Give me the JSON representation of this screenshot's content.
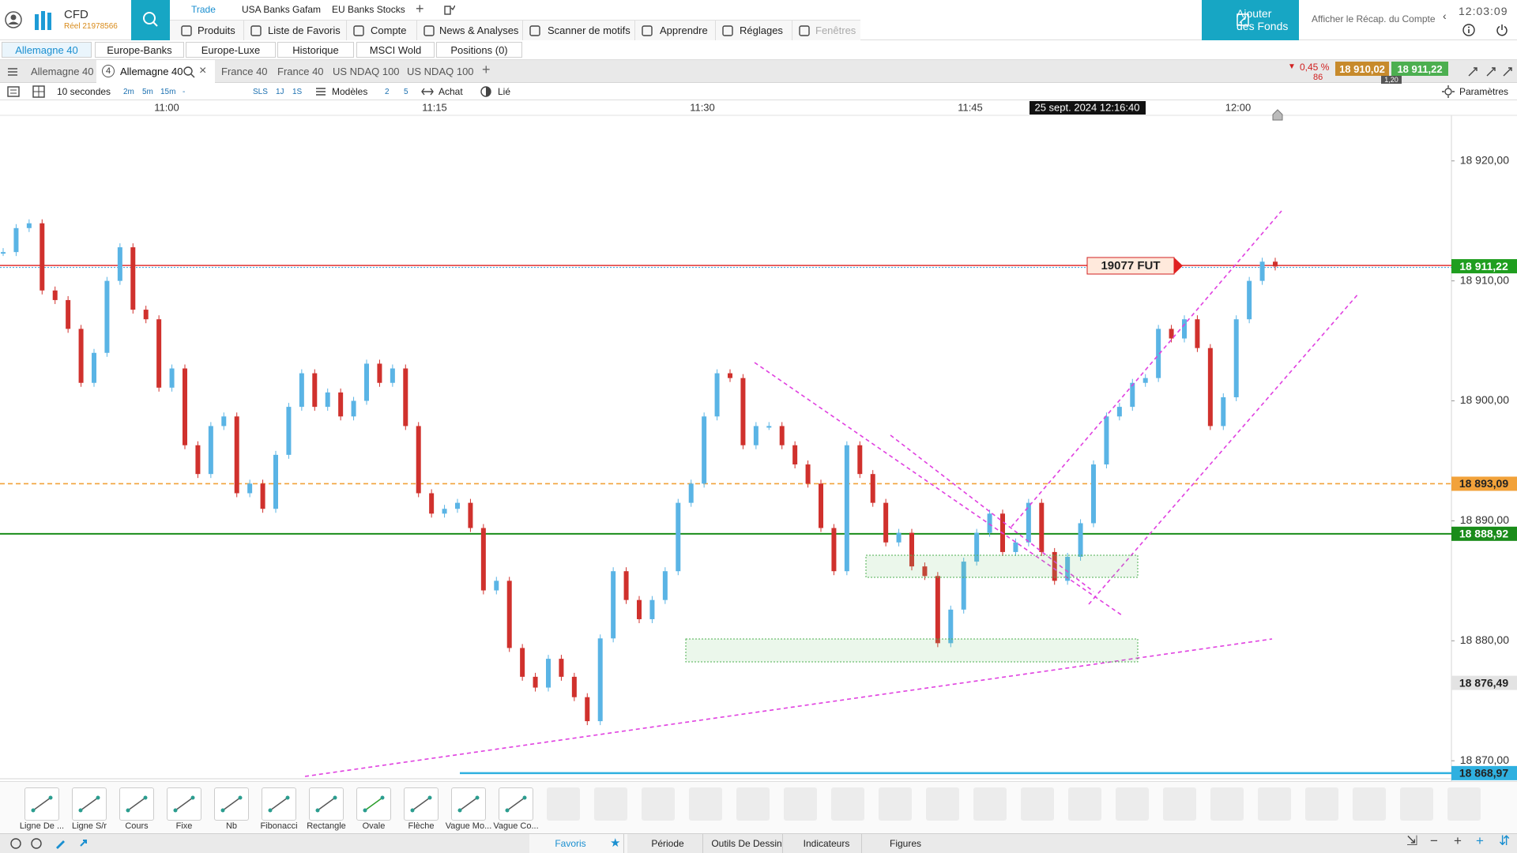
{
  "header": {
    "account_type": "CFD",
    "account_id": "Réel 21978566",
    "top_tabs": [
      "Trade",
      "USA Banks Gafam",
      "EU Banks Stocks"
    ],
    "menu": [
      "Produits",
      "Liste de Favoris",
      "Compte",
      "News & Analyses",
      "Scanner de motifs",
      "Apprendre",
      "Réglages",
      "Fenêtres"
    ],
    "add_funds": [
      "Ajouter",
      "des Fonds"
    ],
    "account_summary": "Afficher le Récap. du Compte",
    "clock": "12:03:09"
  },
  "watchlists": [
    "Allemagne 40",
    "Europe-Banks",
    "Europe-Luxe",
    "Historique",
    "MSCI Wold",
    "Positions (0)"
  ],
  "chart_tabs": [
    "Allemagne 40",
    "Allemagne 40",
    "France 40",
    "France 40",
    "US NDAQ 100",
    "US NDAQ 100"
  ],
  "active_tab_badge": "4",
  "quote": {
    "change": "0,45 %",
    "change_points": "86",
    "bid": "18 910,02",
    "ask": "18 911,22",
    "spread": "1,20"
  },
  "toolbar": {
    "interval": "10 secondes",
    "intervals": [
      "2m",
      "5m",
      "15m",
      "-"
    ],
    "ranges": [
      "SLS",
      "1J",
      "1S"
    ],
    "templates": "Modèles",
    "counts": [
      "2",
      "5"
    ],
    "buy": "Achat",
    "linked": "Lié",
    "settings": "Paramètres"
  },
  "chart": {
    "type": "candlestick",
    "time_ticks": [
      "11:00",
      "11:15",
      "11:30",
      "11:45",
      "12:00"
    ],
    "cursor_time": "25 sept. 2024 12:16:40",
    "ylim": [
      18868.5,
      18923.8
    ],
    "yticks": [
      {
        "value": 18870,
        "label": "18 870,00"
      },
      {
        "value": 18880,
        "label": "18 880,00"
      },
      {
        "value": 18890,
        "label": "18 890,00"
      },
      {
        "value": 18900,
        "label": "18 900,00"
      },
      {
        "value": 18910,
        "label": "18 910,00"
      },
      {
        "value": 18920,
        "label": "18 920,00"
      }
    ],
    "colors": {
      "up": "#5ab4e5",
      "down": "#d0312d"
    },
    "closes": [
      18912.4,
      18914.4,
      18914.8,
      18909.2,
      18908.4,
      18906,
      18901.5,
      18904,
      18910,
      18912.8,
      18907.6,
      18906.8,
      18901.1,
      18902.7,
      18896.3,
      18893.9,
      18897.9,
      18898.7,
      18892.3,
      18893.1,
      18891,
      18895.5,
      18899.5,
      18902.3,
      18899.5,
      18900.7,
      18898.7,
      18900,
      18903.1,
      18901.5,
      18902.7,
      18897.9,
      18892.3,
      18890.6,
      18891,
      18891.5,
      18889.4,
      18884.2,
      18885,
      18879.4,
      18877,
      18876.1,
      18878.5,
      18877,
      18875.3,
      18873.3,
      18880.2,
      18885.8,
      18883.4,
      18881.8,
      18883.4,
      18885.8,
      18891.5,
      18893.1,
      18898.7,
      18902.3,
      18901.9,
      18896.3,
      18897.9,
      18897.9,
      18896.3,
      18894.7,
      18893.1,
      18889.4,
      18885.8,
      18896.3,
      18893.9,
      18891.5,
      18888.2,
      18889,
      18886.2,
      18885.4,
      18879.8,
      18882.6,
      18886.6,
      18889,
      18890.6,
      18887.4,
      18888.2,
      18891.5,
      18887.4,
      18885,
      18887,
      18889.8,
      18894.7,
      18898.7,
      18899.5,
      18901.5,
      18901.9,
      18906,
      18905.2,
      18906.8,
      18904.4,
      18897.9,
      18900.3,
      18906.8,
      18910,
      18911.6,
      18911.2
    ],
    "levels": [
      {
        "value": 18911.22,
        "label": "18 911,22",
        "color": "#1f9e1f",
        "text_color": "#ffffff",
        "line": "dotted"
      },
      {
        "value": 18893.09,
        "label": "18 893,09",
        "color": "#f2a23a",
        "text_color": "#222222",
        "line": "dashed"
      },
      {
        "value": 18888.92,
        "label": "18 888,92",
        "color": "#1a8c1a",
        "text_color": "#ffffff",
        "line": "solid"
      },
      {
        "value": 18876.49,
        "label": "18 876,49",
        "color": "#e3e3e3",
        "text_color": "#222222",
        "line": "none"
      },
      {
        "value": 18868.97,
        "label": "18 868,97",
        "color": "#2fb0e0",
        "text_color": "#222222",
        "line": "solid"
      }
    ],
    "annotation": "19077 FUT"
  },
  "drawing_tools": [
    "Ligne De ...",
    "Ligne S/r",
    "Cours",
    "Fixe",
    "Nb",
    "Fibonacci",
    "Rectangle",
    "Ovale",
    "Flèche",
    "Vague Mo...",
    "Vague Co..."
  ],
  "bottom_tabs": [
    "Favoris",
    "Période",
    "Outils De Dessin",
    "Indicateurs",
    "Figures"
  ]
}
